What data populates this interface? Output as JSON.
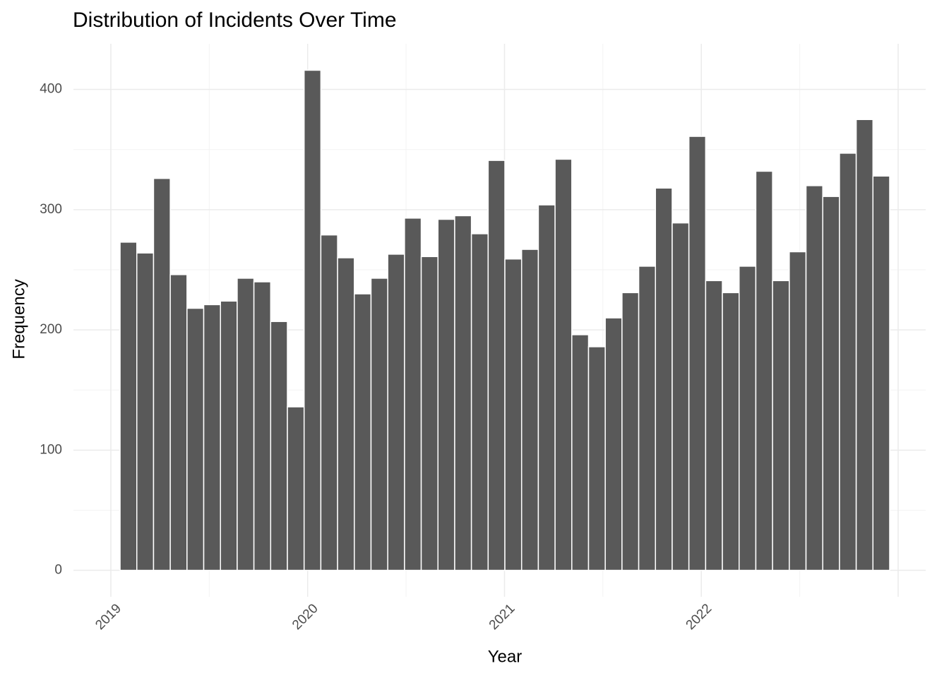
{
  "chart_data": {
    "type": "histogram",
    "title": "Distribution of Incidents Over Time",
    "x_label": "Year",
    "y_label": "Frequency",
    "bins": [
      2019.047,
      2019.132,
      2019.217,
      2019.302,
      2019.387,
      2019.472,
      2019.557,
      2019.642,
      2019.727,
      2019.812,
      2019.897,
      2019.982,
      2020.067,
      2020.152,
      2020.237,
      2020.322,
      2020.407,
      2020.492,
      2020.577,
      2020.662,
      2020.747,
      2020.832,
      2020.917,
      2021.002,
      2021.087,
      2021.172,
      2021.257,
      2021.342,
      2021.427,
      2021.512,
      2021.597,
      2021.682,
      2021.767,
      2021.852,
      2021.937,
      2022.022,
      2022.107,
      2022.192,
      2022.277,
      2022.362,
      2022.447,
      2022.532,
      2022.617,
      2022.702,
      2022.787,
      2022.872,
      2022.957
    ],
    "values": [
      273,
      264,
      326,
      246,
      218,
      221,
      224,
      243,
      240,
      207,
      136,
      416,
      279,
      260,
      230,
      243,
      263,
      293,
      261,
      292,
      295,
      280,
      341,
      259,
      267,
      304,
      342,
      196,
      186,
      210,
      231,
      253,
      318,
      289,
      361,
      241,
      231,
      253,
      332,
      241,
      265,
      320,
      311,
      347,
      375,
      328
    ],
    "color": "#595959",
    "xlim": [
      2018.81,
      2023.14
    ],
    "xticks": [
      2019,
      2020,
      2021,
      2022
    ],
    "ylim": [
      -22,
      438
    ],
    "yticks": [
      0,
      100,
      200,
      300,
      400
    ],
    "grid": true
  }
}
